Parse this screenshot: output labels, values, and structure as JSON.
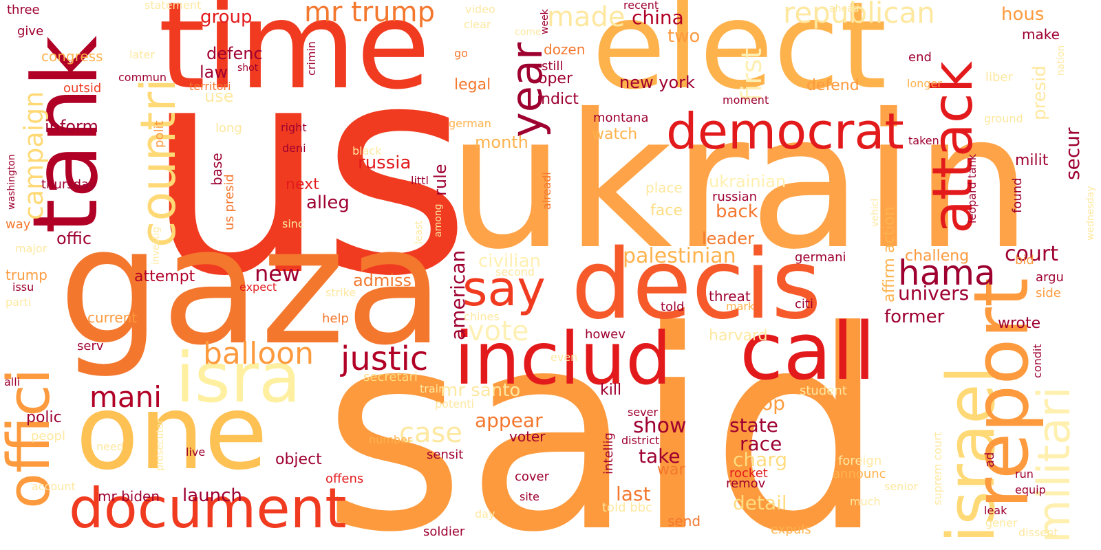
{
  "palette": {
    "dark_red": "#B10026",
    "maroon": "#9E0030",
    "red": "#E31A1C",
    "red_orange": "#F03B20",
    "orange": "#FD8D3C",
    "light_orange": "#FEB24C",
    "yellow": "#FED976",
    "pale_yellow": "#FFEDA0",
    "lightest": "#FFFFCC"
  },
  "words": [
    "said",
    "us",
    "ukrain",
    "gaza",
    "time",
    "elect",
    "decis",
    "one",
    "tank",
    "includ",
    "call",
    "document",
    "isra",
    "israel",
    "report",
    "offici",
    "countri",
    "attack",
    "democrat",
    "militari",
    "year",
    "say",
    "justic",
    "hama",
    "balloon",
    "republican",
    "mr trump",
    "made",
    "first",
    "vote",
    "mani",
    "campaign",
    "case",
    "china",
    "court",
    "palestinian",
    "univers",
    "former",
    "charg",
    "state",
    "race",
    "secur",
    "show",
    "new",
    "american",
    "alleg",
    "russia",
    "admiss",
    "appear",
    "launch",
    "take",
    "top",
    "last",
    "detail",
    "civilian",
    "ukrainian",
    "back",
    "leader",
    "challeng",
    "presid",
    "affirm action",
    "mr santo",
    "new york",
    "defend",
    "hous",
    "law",
    "defenc",
    "inform",
    "offic",
    "thursday",
    "current",
    "trump",
    "attempt",
    "polic",
    "mr biden",
    "next",
    "group",
    "two",
    "make",
    "end",
    "dozen",
    "oper",
    "indict",
    "legal",
    "montana",
    "watch",
    "milit",
    "month",
    "rule",
    "base",
    "us presid",
    "polit",
    "use",
    "long",
    "right",
    "deni",
    "russian",
    "place",
    "face",
    "germani",
    "threat",
    "kill",
    "voter",
    "war",
    "wrote",
    "argu",
    "side",
    "bid",
    "found",
    "leopard tank",
    "statement",
    "video",
    "three",
    "give",
    "congress",
    "later",
    "outsid",
    "commun",
    "shot",
    "territori",
    "crimin",
    "week",
    "still",
    "recent",
    "clear",
    "come",
    "go",
    "longer",
    "liber",
    "ahead",
    "nation",
    "ground",
    "wednesday",
    "taken",
    "german",
    "black",
    "littl",
    "alreadi",
    "vehicl",
    "investig",
    "sinc",
    "least",
    "among",
    "washington",
    "way",
    "major",
    "issu",
    "parti",
    "expect",
    "second",
    "strike",
    "help",
    "chines",
    "serv",
    "alli",
    "secretari",
    "even",
    "train",
    "potenti",
    "need",
    "live",
    "object",
    "sensit",
    "offens",
    "cover",
    "site",
    "account",
    "peopl",
    "prosecutor",
    "intellig",
    "district",
    "sever",
    "citi",
    "mark",
    "told",
    "howev",
    "harvard",
    "student",
    "suprem court",
    "foreign",
    "ad",
    "senior",
    "much",
    "remov",
    "rocket",
    "announc",
    "run",
    "equip",
    "leak",
    "gener",
    "condit",
    "told bbc",
    "send",
    "expuls",
    "dissent",
    "soldier",
    "day",
    "number",
    "moment"
  ]
}
